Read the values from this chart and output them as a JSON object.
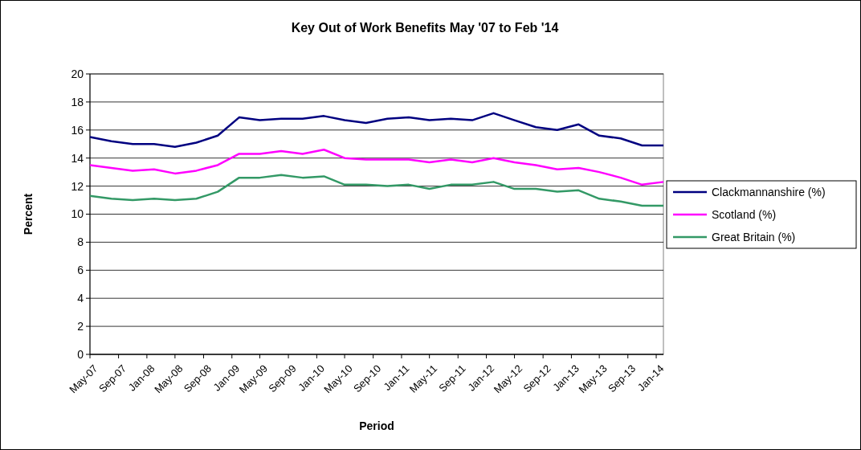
{
  "chart_data": {
    "type": "line",
    "title": "Key Out of Work Benefits May '07 to Feb '14",
    "xlabel": "Period",
    "ylabel": "Percent",
    "x": [
      "2007-05",
      "2007-08",
      "2007-11",
      "2008-02",
      "2008-05",
      "2008-08",
      "2008-11",
      "2009-02",
      "2009-05",
      "2009-08",
      "2009-11",
      "2010-02",
      "2010-05",
      "2010-08",
      "2010-11",
      "2011-02",
      "2011-05",
      "2011-08",
      "2011-11",
      "2012-02",
      "2012-05",
      "2012-08",
      "2012-11",
      "2013-02",
      "2013-05",
      "2013-08",
      "2013-11",
      "2014-02"
    ],
    "series": [
      {
        "name": "Clackmannanshire  (%)",
        "color": "#000080",
        "values": [
          15.5,
          15.2,
          15.0,
          15.0,
          14.8,
          15.1,
          15.6,
          16.9,
          16.7,
          16.8,
          16.8,
          17.0,
          16.7,
          16.5,
          16.8,
          16.9,
          16.7,
          16.8,
          16.7,
          17.2,
          16.7,
          16.2,
          16.0,
          16.4,
          15.6,
          15.4,
          14.9,
          14.9
        ]
      },
      {
        "name": "Scotland  (%)",
        "color": "#ff00ff",
        "values": [
          13.5,
          13.3,
          13.1,
          13.2,
          12.9,
          13.1,
          13.5,
          14.3,
          14.3,
          14.5,
          14.3,
          14.6,
          14.0,
          13.9,
          13.9,
          13.9,
          13.7,
          13.9,
          13.7,
          14.0,
          13.7,
          13.5,
          13.2,
          13.3,
          13.0,
          12.6,
          12.1,
          12.3
        ]
      },
      {
        "name": "Great Britain  (%)",
        "color": "#339966",
        "values": [
          11.3,
          11.1,
          11.0,
          11.1,
          11.0,
          11.1,
          11.6,
          12.6,
          12.6,
          12.8,
          12.6,
          12.7,
          12.1,
          12.1,
          12.0,
          12.1,
          11.8,
          12.1,
          12.1,
          12.3,
          11.8,
          11.8,
          11.6,
          11.7,
          11.1,
          10.9,
          10.6,
          10.6
        ]
      }
    ],
    "xlim": [
      "2007-05",
      "2014-02"
    ],
    "xticks": [
      {
        "value": "2007-05",
        "label": "May-07"
      },
      {
        "value": "2007-09",
        "label": "Sep-07"
      },
      {
        "value": "2008-01",
        "label": "Jan-08"
      },
      {
        "value": "2008-05",
        "label": "May-08"
      },
      {
        "value": "2008-09",
        "label": "Sep-08"
      },
      {
        "value": "2009-01",
        "label": "Jan-09"
      },
      {
        "value": "2009-05",
        "label": "May-09"
      },
      {
        "value": "2009-09",
        "label": "Sep-09"
      },
      {
        "value": "2010-01",
        "label": "Jan-10"
      },
      {
        "value": "2010-05",
        "label": "May-10"
      },
      {
        "value": "2010-09",
        "label": "Sep-10"
      },
      {
        "value": "2011-01",
        "label": "Jan-11"
      },
      {
        "value": "2011-05",
        "label": "May-11"
      },
      {
        "value": "2011-09",
        "label": "Sep-11"
      },
      {
        "value": "2012-01",
        "label": "Jan-12"
      },
      {
        "value": "2012-05",
        "label": "May-12"
      },
      {
        "value": "2012-09",
        "label": "Sep-12"
      },
      {
        "value": "2013-01",
        "label": "Jan-13"
      },
      {
        "value": "2013-05",
        "label": "May-13"
      },
      {
        "value": "2013-09",
        "label": "Sep-13"
      },
      {
        "value": "2014-01",
        "label": "Jan-14"
      }
    ],
    "ylim": [
      0,
      20
    ],
    "yticks": [
      0,
      2,
      4,
      6,
      8,
      10,
      12,
      14,
      16,
      18,
      20
    ],
    "grid": "y",
    "legend": "right",
    "line_style": "solid"
  }
}
